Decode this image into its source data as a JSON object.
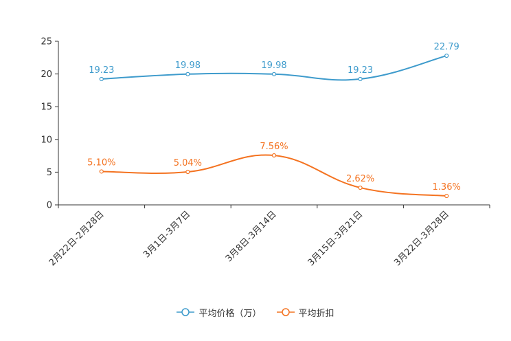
{
  "chart_data": {
    "type": "line",
    "categories": [
      "2月22日-2月28日",
      "3月1日-3月7日",
      "3月8日-3月14日",
      "3月15日-3月21日",
      "3月22日-3月28日"
    ],
    "ylim": [
      0,
      25
    ],
    "yticks": [
      0,
      5,
      10,
      15,
      20,
      25
    ],
    "series": [
      {
        "name": "平均价格（万）",
        "color": "#3e9bcc",
        "values": [
          19.23,
          19.98,
          19.98,
          19.23,
          22.79
        ],
        "labels": [
          "19.23",
          "19.98",
          "19.98",
          "19.23",
          "22.79"
        ]
      },
      {
        "name": "平均折扣",
        "color": "#f47321",
        "values": [
          5.1,
          5.04,
          7.56,
          2.62,
          1.36
        ],
        "labels": [
          "5.10%",
          "5.04%",
          "7.56%",
          "2.62%",
          "1.36%"
        ]
      }
    ],
    "legend_position": "bottom-center",
    "grid": false
  }
}
